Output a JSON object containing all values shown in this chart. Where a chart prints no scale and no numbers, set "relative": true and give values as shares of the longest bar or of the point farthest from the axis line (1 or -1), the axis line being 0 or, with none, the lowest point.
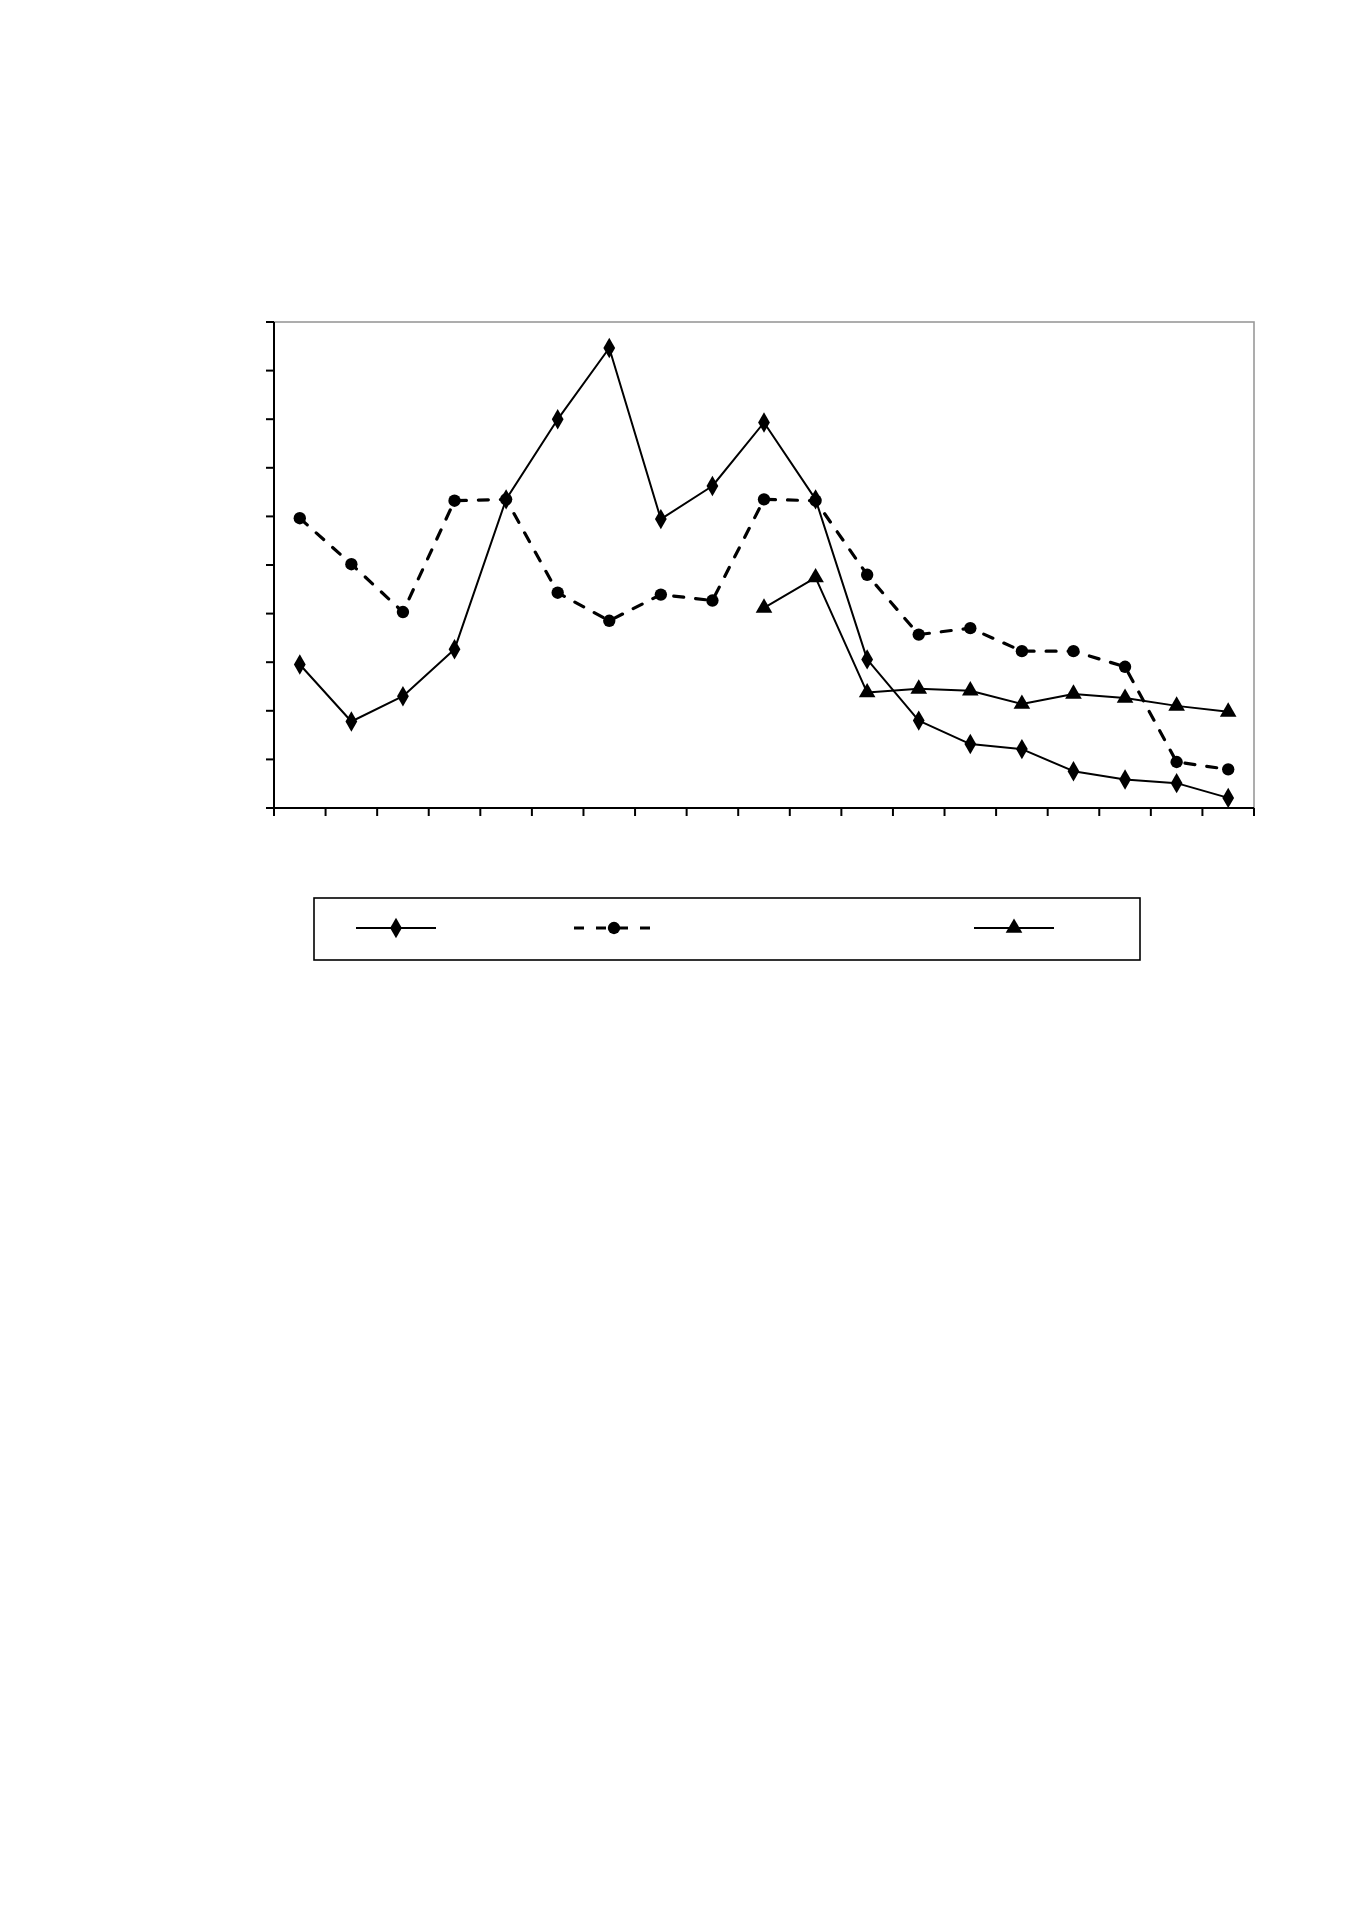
{
  "chart_data": {
    "type": "line",
    "relative": true,
    "categories": [
      null,
      null,
      null,
      null,
      null,
      null,
      null,
      null,
      null,
      null,
      null,
      null,
      null,
      null,
      null,
      null,
      null,
      null,
      null
    ],
    "series": [
      {
        "color": "#000000",
        "marker": "diamond",
        "line_style": "solid",
        "values": [
          0.312,
          0.188,
          0.243,
          0.345,
          0.671,
          0.845,
          1,
          0.628,
          0.7,
          0.838,
          0.671,
          0.323,
          0.19,
          0.139,
          0.128,
          0.08,
          0.062,
          0.054,
          0.022
        ]
      },
      {
        "color": "#000000",
        "marker": "circle",
        "line_style": "dashed",
        "values": [
          0.63,
          0.53,
          0.426,
          0.668,
          0.671,
          0.468,
          0.407,
          0.464,
          0.451,
          0.671,
          0.668,
          0.507,
          0.377,
          0.391,
          0.341,
          0.341,
          0.307,
          0.1,
          0.084
        ]
      },
      {
        "color": "#000000",
        "marker": "triangle",
        "line_style": "solid",
        "values": [
          null,
          null,
          null,
          null,
          null,
          null,
          null,
          null,
          null,
          0.435,
          0.501,
          0.251,
          0.259,
          0.255,
          0.226,
          0.248,
          0.239,
          0.222,
          0.209
        ]
      }
    ],
    "grid": false
  }
}
